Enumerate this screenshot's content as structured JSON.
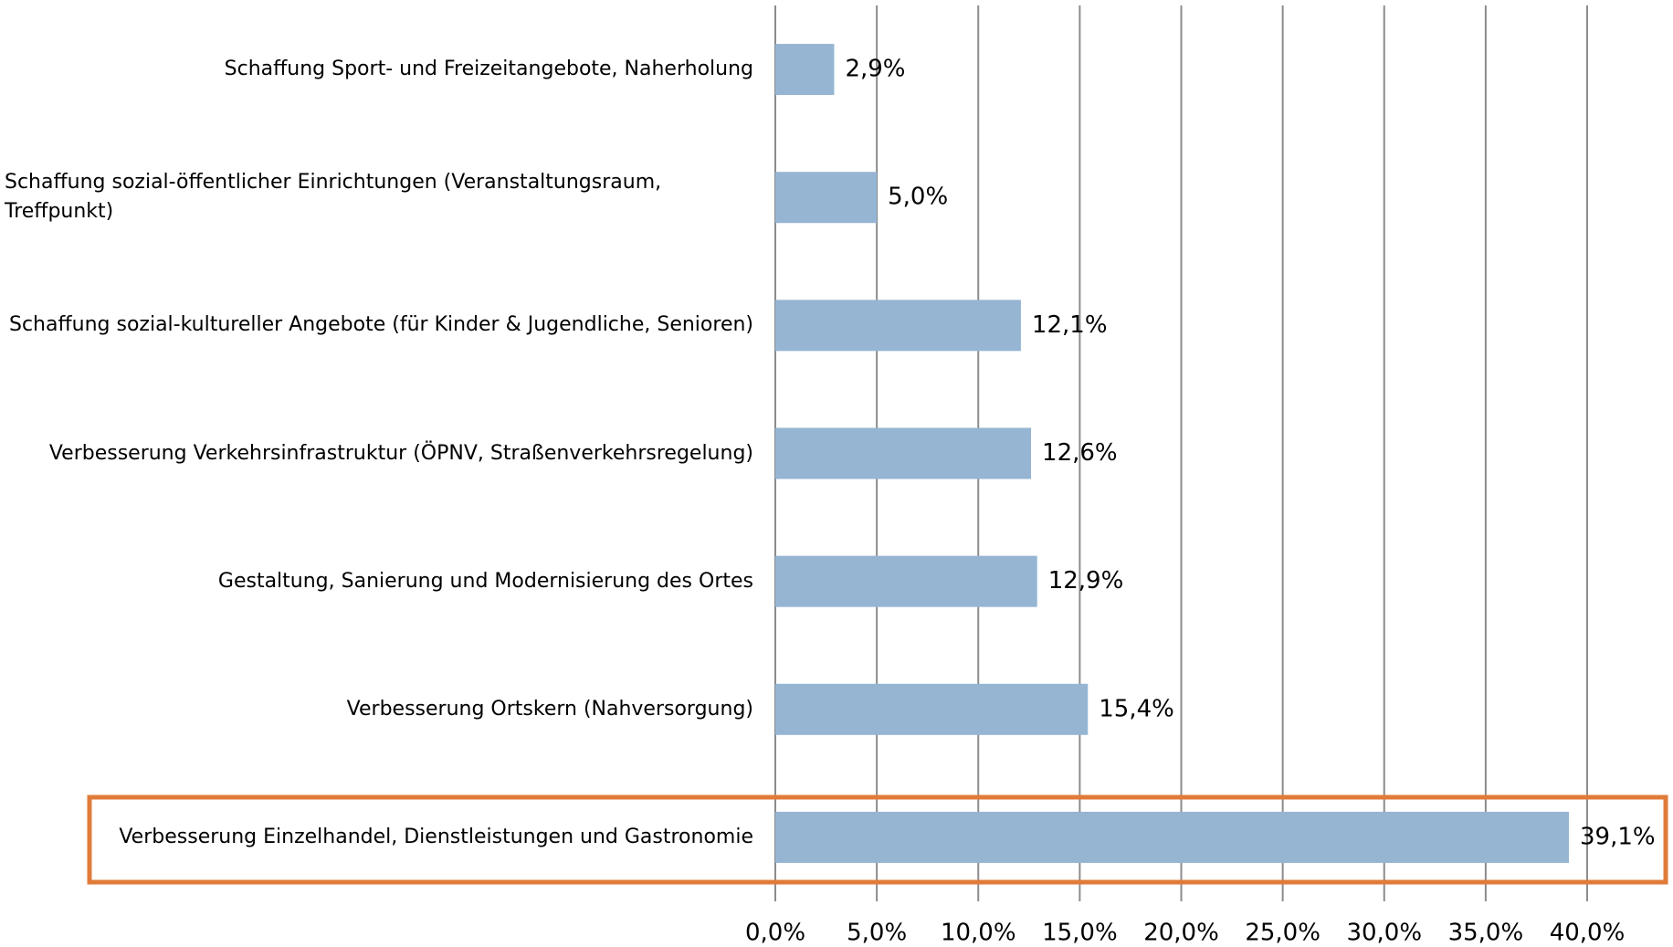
{
  "chart_data": {
    "type": "bar",
    "orientation": "horizontal",
    "categories": [
      "Schaffung Sport- und Freizeitangebote, Naherholung",
      "Schaffung sozial-öffentlicher Einrichtungen (Veranstaltungsraum, Treffpunkt)",
      "Schaffung sozial-kultureller Angebote (für Kinder & Jugendliche, Senioren)",
      "Verbesserung Verkehrsinfrastruktur (ÖPNV, Straßenverkehrsregelung)",
      "Gestaltung, Sanierung und Modernisierung des Ortes",
      "Verbesserung Ortskern (Nahversorgung)",
      "Verbesserung Einzelhandel, Dienstleistungen und Gastronomie"
    ],
    "values": [
      2.9,
      5.0,
      12.1,
      12.6,
      12.9,
      15.4,
      39.1
    ],
    "value_labels": [
      "2,9%",
      "5,0%",
      "12,1%",
      "12,6%",
      "12,9%",
      "15,4%",
      "39,1%"
    ],
    "color": "#95b5d3",
    "xlim": [
      0,
      40
    ],
    "xticks": [
      {
        "value": 0,
        "label": "0,0%"
      },
      {
        "value": 5,
        "label": "5,0%"
      },
      {
        "value": 10,
        "label": "10,0%"
      },
      {
        "value": 15,
        "label": "15,0%"
      },
      {
        "value": 20,
        "label": "20,0%"
      },
      {
        "value": 25,
        "label": "25,0%"
      },
      {
        "value": 30,
        "label": "30,0%"
      },
      {
        "value": 35,
        "label": "35,0%"
      },
      {
        "value": 40,
        "label": "40,0%"
      }
    ],
    "grid": true
  }
}
